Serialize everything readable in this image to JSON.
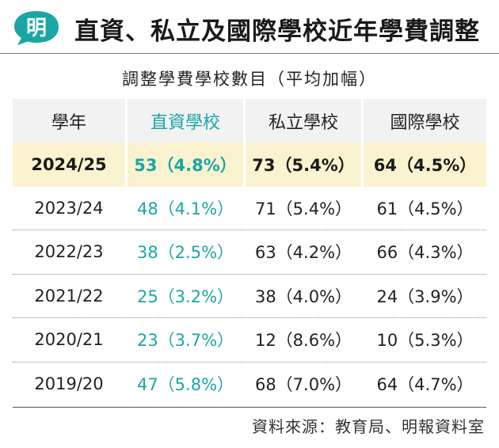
{
  "header": {
    "logo_text": "明",
    "title": "直資、私立及國際學校近年學費調整",
    "colors": {
      "accent": "#1aa6a6",
      "highlight": "#fbf3cf",
      "header_bg": "#f2f2f2"
    }
  },
  "subtitle": "調整學費學校數目（平均加幅）",
  "chart_data": {
    "type": "table",
    "columns": [
      "學年",
      "直資學校",
      "私立學校",
      "國際學校"
    ],
    "rows": [
      [
        "2024/25",
        "53（4.8%）",
        "73（5.4%）",
        "64（4.5%）"
      ],
      [
        "2023/24",
        "48（4.1%）",
        "71（5.4%）",
        "61（4.5%）"
      ],
      [
        "2022/23",
        "38（2.5%）",
        "63（4.2%）",
        "66（4.3%）"
      ],
      [
        "2021/22",
        "25（3.2%）",
        "38（4.0%）",
        "24（3.9%）"
      ],
      [
        "2020/21",
        "23（3.7%）",
        "12（8.6%）",
        "10（5.3%）"
      ],
      [
        "2019/20",
        "47（5.8%）",
        "68（7.0%）",
        "64（4.7%）"
      ]
    ]
  },
  "source": "資料來源：教育局、明報資料室"
}
